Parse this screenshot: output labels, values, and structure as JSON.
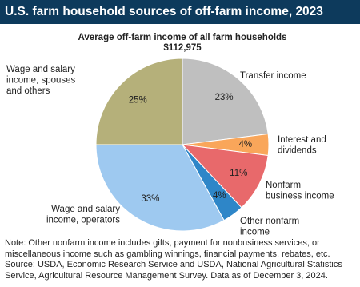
{
  "chart_data": {
    "type": "pie",
    "title": "U.S. farm household sources of off-farm income, 2023",
    "subtitle": "Average off-farm income of all farm households",
    "subtitle2": "$112,975",
    "categories": [
      "Transfer income",
      "Interest and dividends",
      "Nonfarm business income",
      "Other nonfarm income",
      "Wage and salary income, operators",
      "Wage and salary income, spouses and others"
    ],
    "values": [
      23,
      4,
      11,
      4,
      33,
      25
    ],
    "value_labels": [
      "23%",
      "4%",
      "11%",
      "4%",
      "33%",
      "25%"
    ],
    "colors": [
      "#bfbfbf",
      "#f9a65a",
      "#e8696b",
      "#2e86c8",
      "#9ec9f0",
      "#b5b07a"
    ],
    "note": "Note: Other nonfarm income includes gifts, payment for nonbusiness services, or miscellaneous income such as gambling winnings, financial payments, rebates, etc.",
    "source": "Source: USDA, Economic Research Service and USDA, National Agricultural Statistics Service, Agricultural Resource Management Survey. Data as of December 3, 2024."
  }
}
